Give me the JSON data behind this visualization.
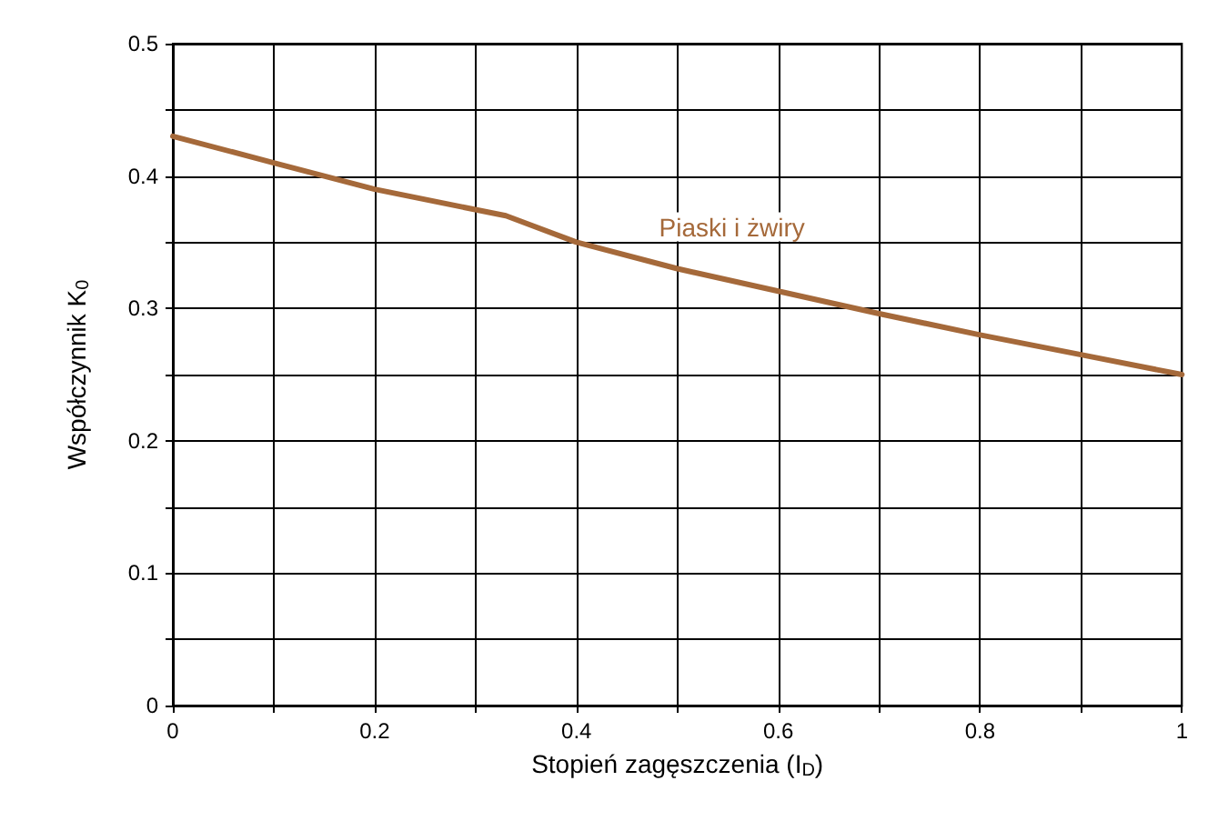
{
  "chart_data": {
    "type": "line",
    "xlabel": "Stopień zagęszczenia (I$_{D}$)",
    "ylabel": "Współczynnik K$_{0}$",
    "x": [
      0,
      0.1,
      0.2,
      0.33,
      0.4,
      0.5,
      0.6,
      0.7,
      0.8,
      0.9,
      1
    ],
    "series": [
      {
        "name": "Piaski i żwiry",
        "color": "#a5693a",
        "values": [
          0.43,
          0.41,
          0.39,
          0.37,
          0.35,
          0.33,
          0.313,
          0.296,
          0.28,
          0.265,
          0.25
        ]
      }
    ],
    "xlim": [
      0,
      1
    ],
    "ylim": [
      0,
      0.5
    ],
    "xticks": [
      0,
      {
        "value": 0.1,
        "label": null
      },
      0.2,
      {
        "value": 0.3,
        "label": null
      },
      0.4,
      {
        "value": 0.5,
        "label": null
      },
      0.6,
      {
        "value": 0.7,
        "label": null
      },
      0.8,
      {
        "value": 0.9,
        "label": null
      },
      1
    ],
    "yticks": [
      0,
      {
        "value": 0.05,
        "label": null
      },
      0.1,
      {
        "value": 0.15,
        "label": null
      },
      0.2,
      {
        "value": 0.25,
        "label": null
      },
      0.3,
      {
        "value": 0.35,
        "label": null
      },
      0.4,
      {
        "value": 0.45,
        "label": null
      },
      0.5
    ],
    "grid": true,
    "legend": false,
    "marker": "none",
    "line_style": "solid"
  }
}
